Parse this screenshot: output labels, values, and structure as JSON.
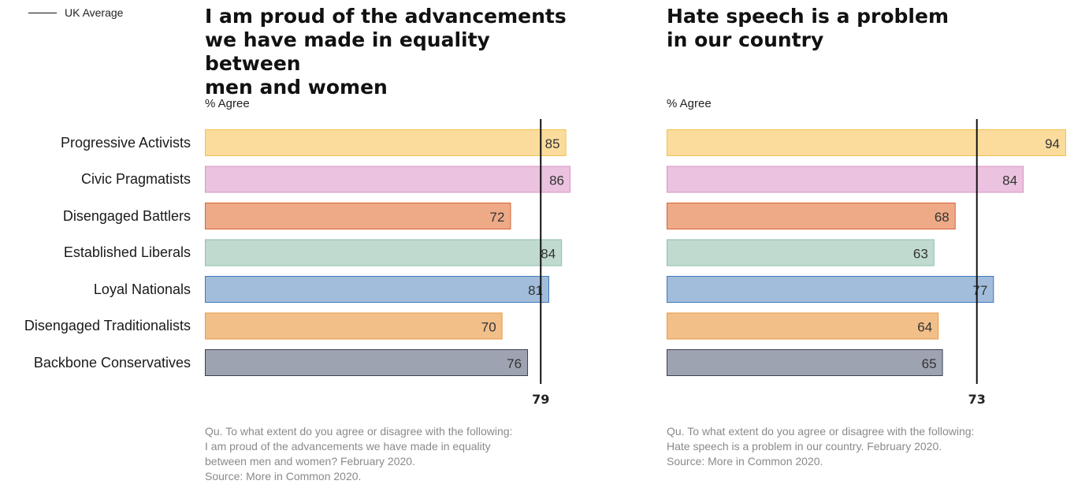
{
  "legend": {
    "label": "UK Average"
  },
  "categories": [
    "Progressive Activists",
    "Civic Pragmatists",
    "Disengaged Battlers",
    "Established Liberals",
    "Loyal Nationals",
    "Disengaged Traditionalists",
    "Backbone Conservatives"
  ],
  "colors": {
    "fills": [
      "#fbdc9c",
      "#ebc2df",
      "#eeaa87",
      "#c0dacf",
      "#a2bcdb",
      "#f2bf89",
      "#9ea3b1"
    ],
    "strokes": [
      "#f2c14e",
      "#d894c6",
      "#d9623a",
      "#8fbfaa",
      "#3d78c0",
      "#e89a48",
      "#3a4153"
    ],
    "average_line": "#111111"
  },
  "chart_data": [
    {
      "type": "bar",
      "orientation": "horizontal",
      "title": "I am proud of the advancements we have made in equality between men and women",
      "title_lines": [
        "I am proud of the advancements",
        "we have made in equality between",
        "men and women"
      ],
      "ylabel": "% Agree",
      "categories": [
        "Progressive Activists",
        "Civic Pragmatists",
        "Disengaged Battlers",
        "Established Liberals",
        "Loyal Nationals",
        "Disengaged Traditionalists",
        "Backbone Conservatives"
      ],
      "values": [
        85,
        86,
        72,
        84,
        81,
        70,
        76
      ],
      "value_labels": [
        "85",
        "86",
        "72",
        "84",
        "81",
        "70",
        "76"
      ],
      "reference_line": {
        "name": "UK Average",
        "value": 79,
        "label": "79"
      },
      "xlim": [
        0,
        86
      ],
      "note_lines": [
        "Qu. To what extent do you agree or disagree with the following:",
        "I am proud of the advancements we have made in equality",
        "between men and women? February 2020.",
        "Source: More in Common 2020."
      ]
    },
    {
      "type": "bar",
      "orientation": "horizontal",
      "title": "Hate speech is a problem in our country",
      "title_lines": [
        "Hate speech is a problem",
        "in our country"
      ],
      "ylabel": "% Agree",
      "categories": [
        "Progressive Activists",
        "Civic Pragmatists",
        "Disengaged Battlers",
        "Established Liberals",
        "Loyal Nationals",
        "Disengaged Traditionalists",
        "Backbone Conservatives"
      ],
      "values": [
        94,
        84,
        68,
        63,
        77,
        64,
        65
      ],
      "value_labels": [
        "94",
        "84",
        "68",
        "63",
        "77",
        "64",
        "65"
      ],
      "reference_line": {
        "name": "UK Average",
        "value": 73,
        "label": "73"
      },
      "xlim": [
        0,
        94
      ],
      "note_lines": [
        "Qu. To what extent do you agree or disagree with the following:",
        "Hate speech is a problem in our country.  February 2020.",
        "Source: More in Common 2020."
      ]
    }
  ]
}
